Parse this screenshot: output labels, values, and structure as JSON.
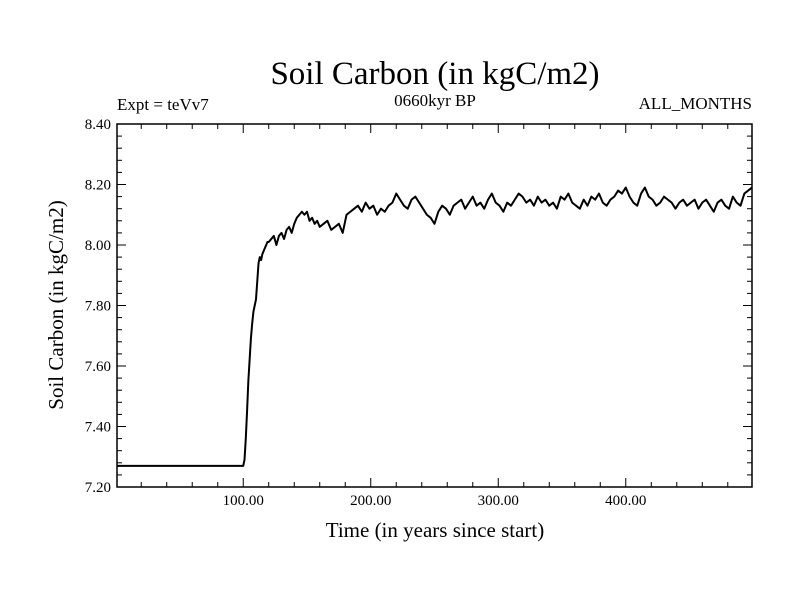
{
  "chart_data": {
    "type": "line",
    "title": "Soil Carbon (in kgC/m2)",
    "subtitle_left": "Expt = teVv7",
    "subtitle_center": "0660kyr BP",
    "subtitle_right": "ALL_MONTHS",
    "xlabel": "Time (in years since start)",
    "ylabel": "Soil Carbon (in kgC/m2)",
    "xlim": [
      1,
      499
    ],
    "ylim": [
      7.2,
      8.4
    ],
    "xticks": [
      {
        "value": 100,
        "label": "100.00"
      },
      {
        "value": 200,
        "label": "200.00"
      },
      {
        "value": 300,
        "label": "300.00"
      },
      {
        "value": 400,
        "label": "400.00"
      }
    ],
    "yticks": [
      {
        "value": 7.2,
        "label": "7.20"
      },
      {
        "value": 7.4,
        "label": "7.40"
      },
      {
        "value": 7.6,
        "label": "7.60"
      },
      {
        "value": 7.8,
        "label": "7.80"
      },
      {
        "value": 8.0,
        "label": "8.00"
      },
      {
        "value": 8.2,
        "label": "8.20"
      },
      {
        "value": 8.4,
        "label": "8.40"
      }
    ],
    "grid": false,
    "legend": "none",
    "line_color": "#000000",
    "series": [
      {
        "x": [
          1,
          99,
          100,
          101,
          102,
          103,
          104,
          105,
          106,
          107,
          108,
          109,
          110,
          111,
          112,
          113,
          114,
          115,
          116,
          117,
          118,
          119,
          120,
          122,
          124,
          126,
          128,
          130,
          132,
          134,
          136,
          138,
          140,
          142,
          144,
          146,
          148,
          150,
          152,
          154,
          156,
          158,
          160,
          163,
          166,
          169,
          172,
          175,
          178,
          181,
          184,
          187,
          190,
          193,
          196,
          199,
          202,
          205,
          208,
          211,
          214,
          217,
          220,
          223,
          226,
          229,
          232,
          235,
          238,
          241,
          244,
          247,
          250,
          253,
          256,
          259,
          262,
          265,
          268,
          271,
          274,
          277,
          280,
          283,
          286,
          289,
          292,
          295,
          298,
          301,
          304,
          307,
          310,
          313,
          316,
          319,
          322,
          325,
          328,
          331,
          334,
          337,
          340,
          343,
          346,
          349,
          352,
          355,
          358,
          361,
          364,
          367,
          370,
          373,
          376,
          379,
          382,
          385,
          388,
          391,
          394,
          397,
          400,
          403,
          406,
          409,
          412,
          415,
          418,
          421,
          424,
          427,
          430,
          433,
          436,
          439,
          442,
          445,
          448,
          451,
          454,
          457,
          460,
          463,
          466,
          469,
          472,
          475,
          478,
          481,
          484,
          487,
          490,
          493,
          496,
          499
        ],
        "values": [
          7.27,
          7.27,
          7.27,
          7.29,
          7.36,
          7.45,
          7.55,
          7.62,
          7.69,
          7.74,
          7.78,
          7.8,
          7.82,
          7.88,
          7.94,
          7.96,
          7.95,
          7.97,
          7.98,
          7.99,
          8.0,
          8.01,
          8.01,
          8.02,
          8.03,
          8.0,
          8.03,
          8.04,
          8.02,
          8.05,
          8.06,
          8.04,
          8.07,
          8.09,
          8.1,
          8.11,
          8.1,
          8.11,
          8.08,
          8.09,
          8.07,
          8.08,
          8.06,
          8.07,
          8.08,
          8.05,
          8.06,
          8.07,
          8.04,
          8.1,
          8.11,
          8.12,
          8.13,
          8.11,
          8.14,
          8.12,
          8.13,
          8.1,
          8.12,
          8.11,
          8.13,
          8.14,
          8.17,
          8.15,
          8.13,
          8.12,
          8.15,
          8.16,
          8.14,
          8.12,
          8.1,
          8.09,
          8.07,
          8.11,
          8.13,
          8.12,
          8.1,
          8.13,
          8.14,
          8.15,
          8.12,
          8.14,
          8.16,
          8.13,
          8.14,
          8.12,
          8.15,
          8.17,
          8.14,
          8.13,
          8.11,
          8.14,
          8.13,
          8.15,
          8.17,
          8.16,
          8.14,
          8.15,
          8.13,
          8.16,
          8.14,
          8.15,
          8.13,
          8.14,
          8.12,
          8.16,
          8.15,
          8.17,
          8.14,
          8.13,
          8.12,
          8.15,
          8.13,
          8.16,
          8.15,
          8.17,
          8.14,
          8.13,
          8.15,
          8.16,
          8.18,
          8.17,
          8.19,
          8.16,
          8.14,
          8.13,
          8.17,
          8.19,
          8.16,
          8.15,
          8.13,
          8.14,
          8.16,
          8.15,
          8.14,
          8.12,
          8.14,
          8.15,
          8.13,
          8.14,
          8.15,
          8.12,
          8.14,
          8.15,
          8.13,
          8.11,
          8.14,
          8.15,
          8.13,
          8.12,
          8.16,
          8.14,
          8.13,
          8.17,
          8.18,
          8.19
        ]
      }
    ]
  }
}
